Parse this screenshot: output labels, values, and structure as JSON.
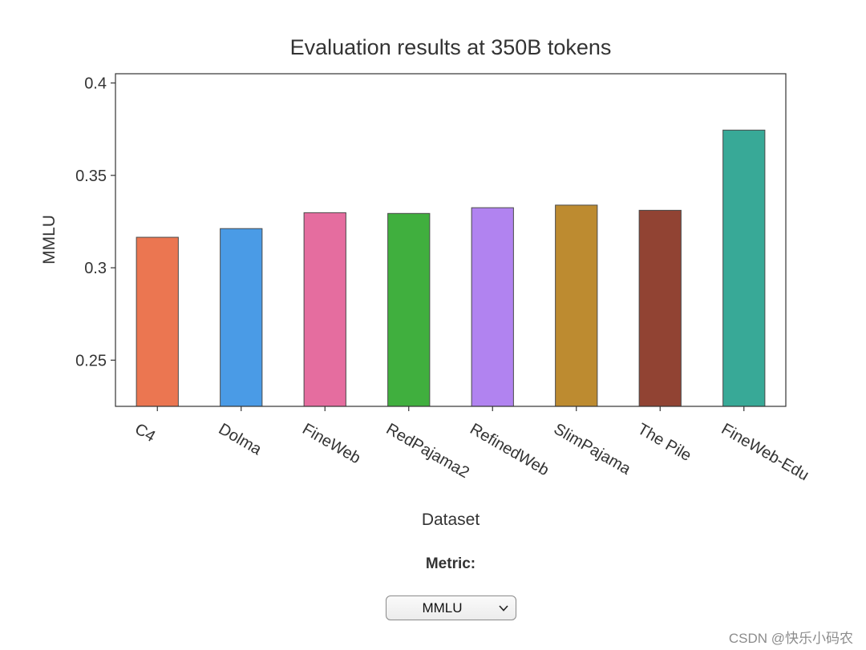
{
  "chart_data": {
    "type": "bar",
    "title": "Evaluation results at 350B tokens",
    "xlabel": "Dataset",
    "ylabel": "MMLU",
    "categories": [
      "C4",
      "Dolma",
      "FineWeb",
      "RedPajama2",
      "RefinedWeb",
      "SlimPajama",
      "The Pile",
      "FineWeb-Edu"
    ],
    "values": [
      0.3165,
      0.3212,
      0.3298,
      0.3294,
      0.3325,
      0.3339,
      0.3311,
      0.3745
    ],
    "colors": [
      "#eb7651",
      "#4a9be6",
      "#e56d9f",
      "#40af3e",
      "#b183f0",
      "#bd8b30",
      "#914333",
      "#38a997"
    ],
    "ylim": [
      0.225,
      0.405
    ],
    "yticks": [
      0.25,
      0.3,
      0.35,
      0.4
    ],
    "ytick_labels": [
      "0.25",
      "0.3",
      "0.35",
      "0.4"
    ],
    "grid": false,
    "legend": "none"
  },
  "controls": {
    "metric_label": "Metric:",
    "metric_value": "MMLU"
  },
  "watermark": "CSDN @快乐小码农"
}
